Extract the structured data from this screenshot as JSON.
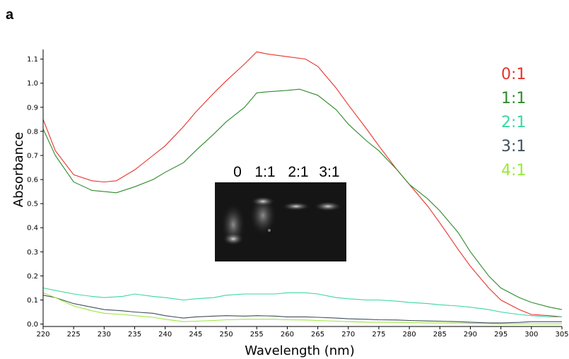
{
  "panel_label": "a",
  "chart_data": {
    "type": "line",
    "xlabel": "Wavelength (nm)",
    "ylabel": "Absorbance",
    "xlim": [
      220,
      305
    ],
    "ylim": [
      -0.01,
      1.14
    ],
    "x_ticks": [
      220,
      225,
      230,
      235,
      240,
      245,
      250,
      255,
      260,
      265,
      270,
      275,
      280,
      285,
      290,
      295,
      300,
      305
    ],
    "y_ticks": [
      0.0,
      0.1,
      0.2,
      0.3,
      0.4,
      0.5,
      0.6,
      0.7,
      0.8,
      0.9,
      1.0,
      1.1
    ],
    "grid": false,
    "legend_position": "right",
    "series": [
      {
        "name": "0:1",
        "color": "#e8332a",
        "x": [
          220,
          222,
          225,
          228,
          230,
          232,
          235,
          238,
          240,
          243,
          245,
          248,
          250,
          253,
          255,
          257,
          260,
          263,
          265,
          268,
          270,
          273,
          275,
          278,
          280,
          283,
          285,
          288,
          290,
          293,
          295,
          298,
          300,
          303,
          305
        ],
        "y": [
          0.85,
          0.72,
          0.62,
          0.595,
          0.59,
          0.595,
          0.64,
          0.7,
          0.74,
          0.82,
          0.88,
          0.96,
          1.01,
          1.08,
          1.13,
          1.12,
          1.11,
          1.1,
          1.07,
          0.98,
          0.91,
          0.81,
          0.74,
          0.64,
          0.58,
          0.49,
          0.42,
          0.31,
          0.24,
          0.15,
          0.1,
          0.06,
          0.04,
          0.035,
          0.03
        ]
      },
      {
        "name": "1:1",
        "color": "#2e8a2a",
        "x": [
          220,
          222,
          225,
          228,
          230,
          232,
          235,
          238,
          240,
          243,
          245,
          248,
          250,
          253,
          255,
          257,
          260,
          262,
          265,
          268,
          270,
          273,
          275,
          278,
          280,
          283,
          285,
          288,
          290,
          293,
          295,
          298,
          300,
          303,
          305
        ],
        "y": [
          0.81,
          0.7,
          0.59,
          0.555,
          0.55,
          0.545,
          0.57,
          0.6,
          0.63,
          0.67,
          0.72,
          0.79,
          0.84,
          0.9,
          0.96,
          0.965,
          0.97,
          0.975,
          0.95,
          0.89,
          0.83,
          0.76,
          0.72,
          0.64,
          0.58,
          0.52,
          0.47,
          0.38,
          0.3,
          0.2,
          0.15,
          0.11,
          0.09,
          0.07,
          0.06
        ]
      },
      {
        "name": "2:1",
        "color": "#3cd6a2",
        "x": [
          220,
          222,
          225,
          228,
          230,
          233,
          235,
          238,
          240,
          243,
          245,
          248,
          250,
          253,
          255,
          258,
          260,
          263,
          265,
          268,
          270,
          273,
          275,
          278,
          280,
          283,
          285,
          288,
          290,
          293,
          295,
          298,
          300,
          303,
          305
        ],
        "y": [
          0.15,
          0.14,
          0.125,
          0.115,
          0.11,
          0.115,
          0.125,
          0.115,
          0.11,
          0.1,
          0.105,
          0.11,
          0.12,
          0.125,
          0.125,
          0.125,
          0.13,
          0.13,
          0.125,
          0.11,
          0.105,
          0.1,
          0.1,
          0.095,
          0.09,
          0.085,
          0.08,
          0.075,
          0.07,
          0.06,
          0.05,
          0.04,
          0.035,
          0.03,
          0.03
        ]
      },
      {
        "name": "3:1",
        "color": "#3f4f5c",
        "x": [
          220,
          222,
          225,
          228,
          230,
          233,
          235,
          238,
          240,
          243,
          245,
          248,
          250,
          253,
          255,
          258,
          260,
          263,
          265,
          268,
          270,
          273,
          275,
          278,
          280,
          283,
          285,
          288,
          290,
          293,
          295,
          298,
          300,
          303,
          305
        ],
        "y": [
          0.12,
          0.11,
          0.085,
          0.07,
          0.06,
          0.055,
          0.05,
          0.045,
          0.035,
          0.025,
          0.03,
          0.033,
          0.035,
          0.033,
          0.035,
          0.033,
          0.03,
          0.03,
          0.028,
          0.025,
          0.022,
          0.02,
          0.018,
          0.017,
          0.015,
          0.013,
          0.012,
          0.01,
          0.008,
          0.005,
          0.005,
          0.007,
          0.01,
          0.01,
          0.01
        ]
      },
      {
        "name": "4:1",
        "color": "#9ae83c",
        "x": [
          220,
          222,
          225,
          228,
          230,
          233,
          235,
          238,
          240,
          243,
          245,
          248,
          250,
          253,
          255,
          258,
          260,
          263,
          265,
          268,
          270,
          273,
          275,
          278,
          280,
          283,
          285,
          288,
          290,
          293,
          295,
          298,
          300,
          303,
          305
        ],
        "y": [
          0.13,
          0.11,
          0.075,
          0.055,
          0.045,
          0.04,
          0.035,
          0.028,
          0.02,
          0.01,
          0.012,
          0.015,
          0.018,
          0.02,
          0.02,
          0.02,
          0.018,
          0.017,
          0.015,
          0.012,
          0.01,
          0.008,
          0.008,
          0.007,
          0.006,
          0.005,
          0.005,
          0.004,
          0.003,
          0.002,
          0.001,
          0.001,
          0.001,
          0.001,
          0.001
        ]
      }
    ]
  },
  "inset": {
    "lane_labels": [
      "0",
      "1:1",
      "2:1",
      "3:1"
    ]
  }
}
